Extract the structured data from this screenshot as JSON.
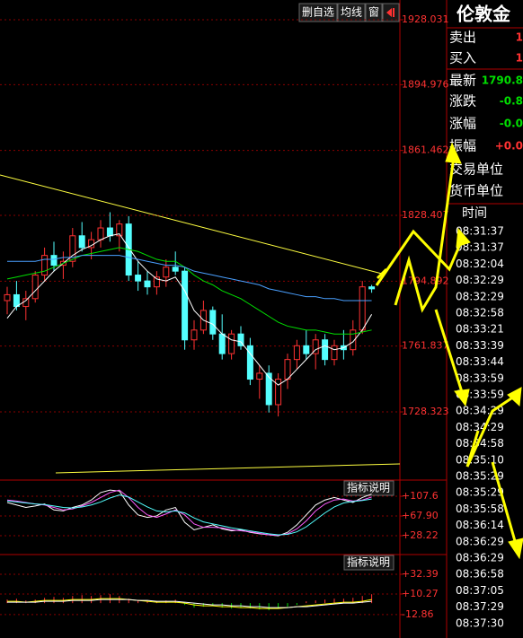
{
  "toolbar": {
    "buttons": [
      "删自选",
      "均线",
      "窗"
    ]
  },
  "chart_data": [
    {
      "type": "candlestick",
      "open": [
        1785,
        1788,
        1782,
        1786,
        1798,
        1808,
        1803,
        1805,
        1818,
        1812,
        1816,
        1822,
        1818,
        1824,
        1798,
        1795,
        1792,
        1797,
        1802,
        1800,
        1765,
        1770,
        1780,
        1768,
        1758,
        1768,
        1762,
        1745,
        1748,
        1732,
        1745,
        1755,
        1762,
        1758,
        1765,
        1755,
        1762,
        1760,
        1770,
        1792
      ],
      "high": [
        1792,
        1795,
        1790,
        1800,
        1812,
        1815,
        1810,
        1822,
        1825,
        1820,
        1826,
        1830,
        1826,
        1828,
        1805,
        1800,
        1800,
        1806,
        1810,
        1802,
        1775,
        1785,
        1782,
        1778,
        1770,
        1772,
        1766,
        1752,
        1752,
        1748,
        1758,
        1765,
        1770,
        1768,
        1768,
        1765,
        1770,
        1775,
        1795,
        1793
      ],
      "low": [
        1778,
        1780,
        1775,
        1784,
        1795,
        1800,
        1796,
        1802,
        1810,
        1806,
        1812,
        1815,
        1810,
        1795,
        1790,
        1788,
        1788,
        1792,
        1798,
        1760,
        1760,
        1768,
        1765,
        1755,
        1755,
        1760,
        1742,
        1735,
        1728,
        1726,
        1740,
        1750,
        1755,
        1750,
        1752,
        1752,
        1755,
        1757,
        1768,
        1789
      ],
      "close": [
        1788,
        1782,
        1786,
        1798,
        1808,
        1803,
        1805,
        1818,
        1812,
        1816,
        1822,
        1818,
        1824,
        1798,
        1795,
        1792,
        1797,
        1802,
        1800,
        1765,
        1770,
        1780,
        1768,
        1758,
        1768,
        1762,
        1745,
        1748,
        1732,
        1745,
        1755,
        1762,
        1758,
        1765,
        1755,
        1762,
        1760,
        1770,
        1792,
        1791
      ],
      "up_color": "#ff3232",
      "down_color": "#54ffff",
      "series": [
        {
          "color": "#ffffff",
          "values": [
            1776,
            1782,
            1785,
            1790,
            1795,
            1800,
            1804,
            1808,
            1811,
            1813,
            1816,
            1818,
            1819,
            1812,
            1805,
            1800,
            1796,
            1795,
            1797,
            1790,
            1780,
            1775,
            1773,
            1768,
            1765,
            1764,
            1758,
            1752,
            1746,
            1742,
            1745,
            1750,
            1755,
            1760,
            1762,
            1760,
            1761,
            1764,
            1770,
            1778
          ]
        },
        {
          "color": "#00e000",
          "values": [
            1796,
            1797,
            1798,
            1799,
            1800,
            1802,
            1804,
            1806,
            1808,
            1809,
            1810,
            1811,
            1812,
            1811,
            1810,
            1808,
            1806,
            1805,
            1805,
            1802,
            1798,
            1795,
            1793,
            1790,
            1788,
            1786,
            1783,
            1780,
            1777,
            1774,
            1772,
            1771,
            1770,
            1770,
            1769,
            1768,
            1768,
            1768,
            1769,
            1770
          ]
        },
        {
          "color": "#4aa0ff",
          "values": [
            1805,
            1805,
            1805,
            1805,
            1806,
            1806,
            1807,
            1807,
            1808,
            1808,
            1808,
            1808,
            1808,
            1807,
            1806,
            1805,
            1804,
            1803,
            1803,
            1802,
            1800,
            1799,
            1798,
            1797,
            1796,
            1795,
            1794,
            1793,
            1791,
            1790,
            1789,
            1788,
            1787,
            1787,
            1786,
            1786,
            1785,
            1785,
            1785,
            1785
          ]
        }
      ],
      "ylim": [
        1693.6,
        1935.8
      ],
      "yticks": [
        1928.031,
        1894.976,
        1861.462,
        1828.407,
        1794.892,
        1761.837,
        1728.323
      ]
    },
    {
      "type": "line",
      "button": "指标说明",
      "series": [
        {
          "color": "#ffffff",
          "values": [
            95,
            90,
            85,
            88,
            92,
            80,
            78,
            85,
            90,
            100,
            115,
            120,
            118,
            90,
            70,
            65,
            68,
            80,
            85,
            55,
            40,
            45,
            50,
            42,
            38,
            40,
            35,
            32,
            30,
            28,
            35,
            50,
            70,
            90,
            100,
            105,
            100,
            95,
            105,
            112
          ]
        },
        {
          "color": "#ff5cff",
          "values": [
            100,
            98,
            95,
            92,
            90,
            85,
            80,
            82,
            88,
            95,
            105,
            115,
            120,
            105,
            85,
            70,
            65,
            72,
            80,
            70,
            52,
            45,
            45,
            44,
            40,
            38,
            36,
            33,
            30,
            29,
            32,
            42,
            58,
            78,
            92,
            100,
            102,
            98,
            100,
            106
          ]
        },
        {
          "color": "#54ffff",
          "values": [
            98,
            96,
            94,
            92,
            91,
            88,
            85,
            84,
            86,
            90,
            96,
            104,
            110,
            106,
            96,
            86,
            78,
            76,
            78,
            74,
            64,
            56,
            52,
            48,
            44,
            41,
            38,
            35,
            32,
            30,
            31,
            36,
            46,
            60,
            74,
            86,
            94,
            97,
            99,
            102
          ]
        }
      ],
      "ylim": [
        -4.3,
        140.1
      ],
      "yticks": [
        {
          "value": 107.6,
          "label": "+107.6"
        },
        {
          "value": 67.9,
          "label": "+67.90"
        },
        {
          "value": 28.22,
          "label": "+28.22"
        }
      ]
    },
    {
      "type": "line",
      "button": "指标说明",
      "bars": {
        "up_color": "#ff3232",
        "down_color": "#00e000",
        "values": [
          4,
          5,
          3,
          4,
          6,
          7,
          6,
          8,
          9,
          8,
          9,
          10,
          8,
          5,
          3,
          2,
          2,
          3,
          4,
          -2,
          -5,
          -4,
          -3,
          -5,
          -6,
          -5,
          -6,
          -7,
          -8,
          -6,
          -4,
          -2,
          2,
          3,
          4,
          5,
          5,
          6,
          8,
          10
        ]
      },
      "series": [
        {
          "color": "#ffff00",
          "values": [
            2,
            2,
            1,
            2,
            3,
            3,
            3,
            4,
            4,
            4,
            5,
            5,
            5,
            4,
            3,
            2,
            1,
            1,
            1,
            0,
            -2,
            -3,
            -3,
            -4,
            -4,
            -5,
            -5,
            -6,
            -6,
            -6,
            -5,
            -4,
            -3,
            -2,
            -1,
            0,
            1,
            1,
            2,
            4
          ]
        },
        {
          "color": "#ffffff",
          "values": [
            1,
            1,
            1,
            1,
            2,
            2,
            2,
            3,
            3,
            3,
            4,
            4,
            4,
            4,
            3,
            3,
            2,
            2,
            2,
            1,
            0,
            -1,
            -2,
            -2,
            -3,
            -3,
            -4,
            -4,
            -5,
            -5,
            -5,
            -4,
            -4,
            -3,
            -2,
            -1,
            0,
            0,
            1,
            2
          ]
        }
      ],
      "ylim": [
        -39.1,
        54.5
      ],
      "yticks": [
        {
          "value": 32.39,
          "label": "+32.39"
        },
        {
          "value": 10.27,
          "label": "+10.27"
        },
        {
          "value": -12.86,
          "label": "-12.86"
        }
      ]
    }
  ],
  "quote_panel": {
    "title": "伦敦金",
    "rows": [
      {
        "label": "卖出",
        "value": "1",
        "color": "#ff3232"
      },
      {
        "label": "买入",
        "value": "1",
        "color": "#ff3232"
      },
      {
        "label": "最新",
        "value": "1790.8",
        "color": "#00e000"
      },
      {
        "label": "涨跌",
        "value": "-0.8",
        "color": "#00e000"
      },
      {
        "label": "涨幅",
        "value": "-0.0",
        "color": "#00e000"
      },
      {
        "label": "振幅",
        "value": "+0.0",
        "color": "#ff3232"
      },
      {
        "label": "交易单位"
      },
      {
        "label": "货币单位"
      }
    ],
    "time_header": "时间",
    "times": [
      "08:31:37",
      "08:31:37",
      "08:32:04",
      "08:32:29",
      "08:32:29",
      "08:32:58",
      "08:33:21",
      "08:33:39",
      "08:33:44",
      "08:33:59",
      "08:33:59",
      "08:34:29",
      "08:34:29",
      "08:34:58",
      "08:35:10",
      "08:35:29",
      "08:35:29",
      "08:35:58",
      "08:36:14",
      "08:36:29",
      "08:36:29",
      "08:36:58",
      "08:37:05",
      "08:37:29",
      "08:37:30"
    ]
  }
}
